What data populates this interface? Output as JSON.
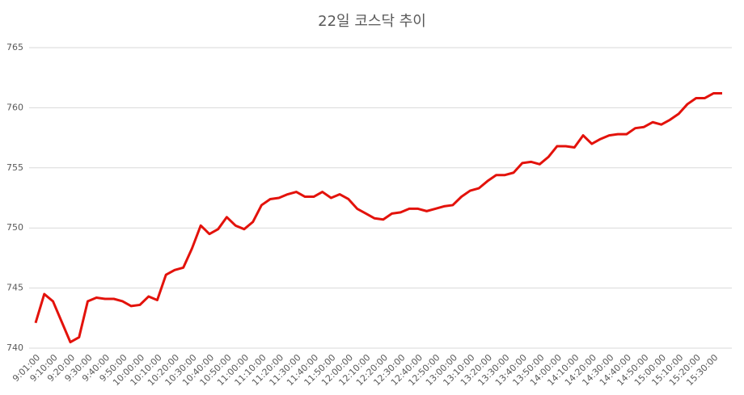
{
  "chart_data": {
    "type": "line",
    "title": "22일 코스닥 추이",
    "categories": [
      "9:01:00",
      null,
      "9:10:00",
      null,
      "9:20:00",
      null,
      "9:30:00",
      null,
      "9:40:00",
      null,
      "9:50:00",
      null,
      "10:00:00",
      null,
      "10:10:00",
      null,
      "10:20:00",
      null,
      "10:30:00",
      null,
      "10:40:00",
      null,
      "10:50:00",
      null,
      "11:00:00",
      null,
      "11:10:00",
      null,
      "11:20:00",
      null,
      "11:30:00",
      null,
      "11:40:00",
      null,
      "11:50:00",
      null,
      "12:00:00",
      null,
      "12:10:00",
      null,
      "12:20:00",
      null,
      "12:30:00",
      null,
      "12:40:00",
      null,
      "12:50:00",
      null,
      "13:00:00",
      null,
      "13:10:00",
      null,
      "13:20:00",
      null,
      "13:30:00",
      null,
      "13:40:00",
      null,
      "13:50:00",
      null,
      "14:00:00",
      null,
      "14:10:00",
      null,
      "14:20:00",
      null,
      "14:30:00",
      null,
      "14:40:00",
      null,
      "14:50:00",
      null,
      "15:00:00",
      null,
      "15:10:00",
      null,
      "15:20:00",
      null,
      "15:30:00",
      null
    ],
    "series": [
      {
        "color": "#e3120b",
        "values": [
          742.1,
          744.5,
          743.9,
          742.2,
          740.5,
          740.9,
          743.9,
          744.2,
          744.1,
          744.1,
          743.9,
          743.5,
          743.6,
          744.3,
          744.0,
          746.1,
          746.5,
          746.7,
          748.3,
          750.2,
          749.5,
          749.9,
          750.9,
          750.2,
          749.9,
          750.5,
          751.9,
          752.4,
          752.5,
          752.8,
          753.0,
          752.6,
          752.6,
          753.0,
          752.5,
          752.8,
          752.4,
          751.6,
          751.2,
          750.8,
          750.7,
          751.2,
          751.3,
          751.6,
          751.6,
          751.4,
          751.6,
          751.8,
          751.9,
          752.6,
          753.1,
          753.3,
          753.9,
          754.4,
          754.4,
          754.6,
          755.4,
          755.5,
          755.3,
          755.9,
          756.8,
          756.8,
          756.7,
          757.7,
          757.0,
          757.4,
          757.7,
          757.8,
          757.8,
          758.3,
          758.4,
          758.8,
          758.6,
          759.0,
          759.5,
          760.3,
          760.8,
          760.8,
          761.2,
          761.2
        ]
      }
    ],
    "ylim": [
      740,
      765
    ],
    "yticks": [
      740,
      745,
      750,
      755,
      760,
      765
    ],
    "grid": true
  }
}
